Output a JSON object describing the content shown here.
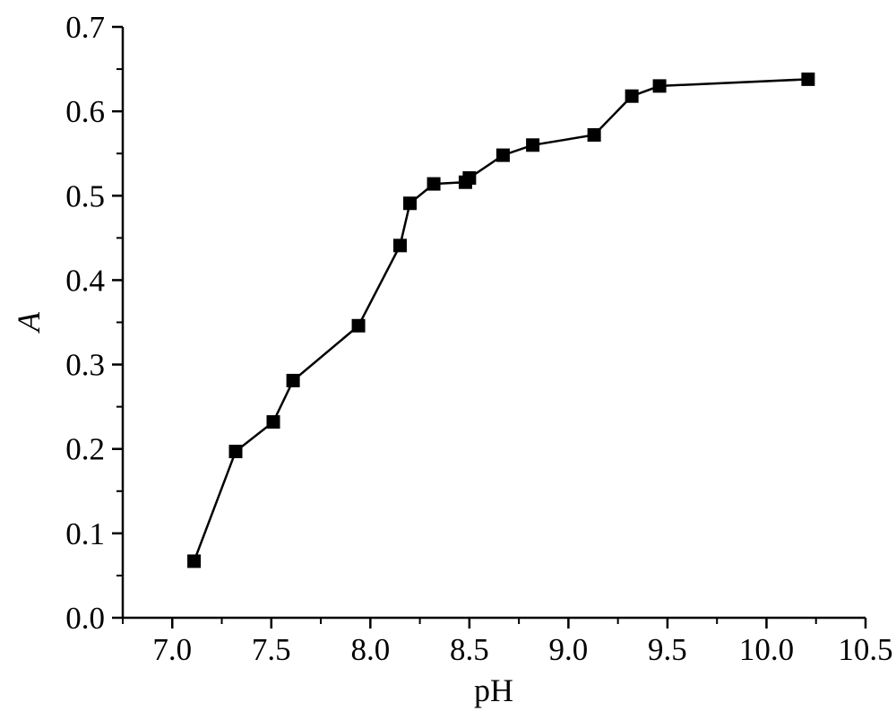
{
  "chart_data": {
    "type": "line",
    "xlabel": "pH",
    "ylabel": "A",
    "xlim": [
      6.75,
      10.5
    ],
    "ylim": [
      0.0,
      0.7
    ],
    "xticks": [
      "7.0",
      "7.5",
      "8.0",
      "8.5",
      "9.0",
      "9.5",
      "10.0",
      "10.5"
    ],
    "yticks": [
      "0.0",
      "0.1",
      "0.2",
      "0.3",
      "0.4",
      "0.5",
      "0.6",
      "0.7"
    ],
    "grid": false,
    "marker": "square",
    "line_color": "#000000",
    "series": [
      {
        "x": [
          7.11,
          7.32,
          7.51,
          7.61,
          7.94,
          8.15,
          8.2,
          8.32,
          8.48,
          8.5,
          8.67,
          8.82,
          9.13,
          9.32,
          9.46,
          10.21
        ],
        "y": [
          0.067,
          0.197,
          0.232,
          0.281,
          0.346,
          0.441,
          0.491,
          0.514,
          0.516,
          0.521,
          0.548,
          0.56,
          0.572,
          0.618,
          0.63,
          0.638
        ]
      }
    ]
  }
}
